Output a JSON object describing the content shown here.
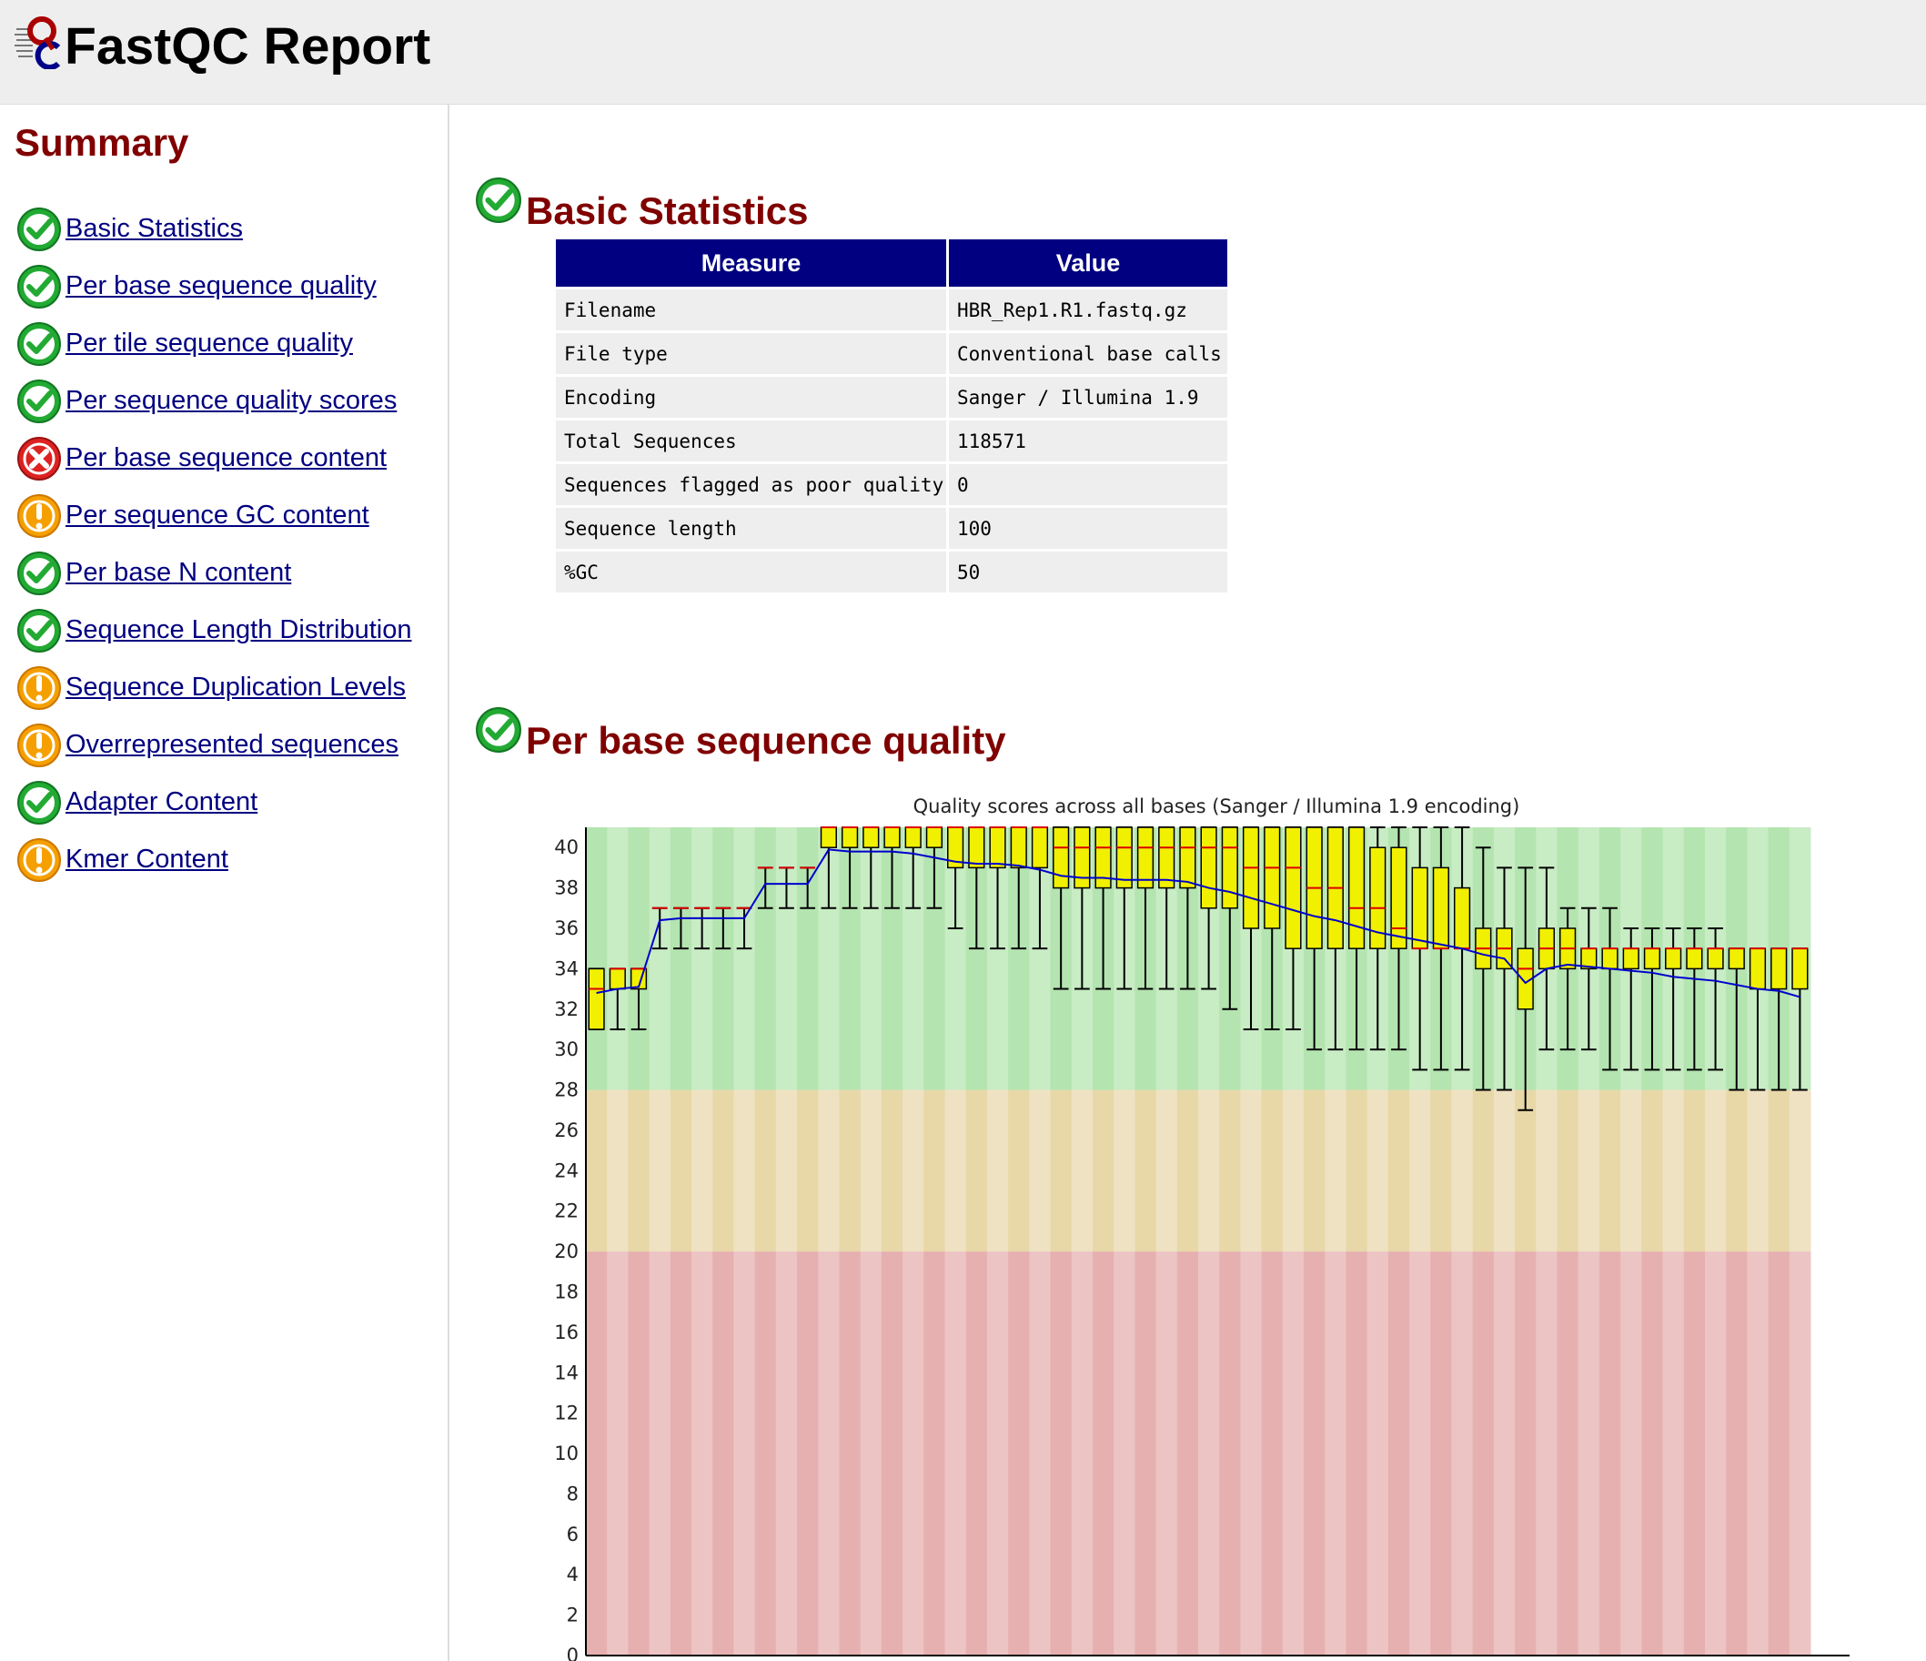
{
  "header": {
    "title": "FastQC Report",
    "logo_icon": "fastqc-logo-icon"
  },
  "summary": {
    "title": "Summary",
    "items": [
      {
        "label": "Basic Statistics",
        "status": "pass"
      },
      {
        "label": "Per base sequence quality",
        "status": "pass"
      },
      {
        "label": "Per tile sequence quality",
        "status": "pass"
      },
      {
        "label": "Per sequence quality scores",
        "status": "pass"
      },
      {
        "label": "Per base sequence content",
        "status": "fail"
      },
      {
        "label": "Per sequence GC content",
        "status": "warn"
      },
      {
        "label": "Per base N content",
        "status": "pass"
      },
      {
        "label": "Sequence Length Distribution",
        "status": "pass"
      },
      {
        "label": "Sequence Duplication Levels",
        "status": "warn"
      },
      {
        "label": "Overrepresented sequences",
        "status": "warn"
      },
      {
        "label": "Adapter Content",
        "status": "pass"
      },
      {
        "label": "Kmer Content",
        "status": "warn"
      }
    ]
  },
  "basic_statistics": {
    "title": "Basic Statistics",
    "status": "pass",
    "headers": [
      "Measure",
      "Value"
    ],
    "rows": [
      [
        "Filename",
        "HBR_Rep1.R1.fastq.gz"
      ],
      [
        "File type",
        "Conventional base calls"
      ],
      [
        "Encoding",
        "Sanger / Illumina 1.9"
      ],
      [
        "Total Sequences",
        "118571"
      ],
      [
        "Sequences flagged as poor quality",
        "0"
      ],
      [
        "Sequence length",
        "100"
      ],
      [
        "%GC",
        "50"
      ]
    ]
  },
  "per_base_quality": {
    "title": "Per base sequence quality",
    "status": "pass"
  },
  "colors": {
    "pass": "#22aa33",
    "fail": "#dd2222",
    "warn": "#f5a000",
    "link": "#000080",
    "heading": "#800000",
    "table_header": "#000080",
    "box_fill": "#f0f000",
    "median": "#dd0000",
    "mean": "#0000cc"
  },
  "chart_data": {
    "type": "box",
    "title": "Quality scores across all bases (Sanger / Illumina 1.9 encoding)",
    "ylim": [
      0,
      41
    ],
    "yticks": [
      0,
      2,
      4,
      6,
      8,
      10,
      12,
      14,
      16,
      18,
      20,
      22,
      24,
      26,
      28,
      30,
      32,
      34,
      36,
      38,
      40
    ],
    "zones": [
      {
        "from": 28,
        "to": 41,
        "quality": "good"
      },
      {
        "from": 20,
        "to": 28,
        "quality": "reasonable"
      },
      {
        "from": 0,
        "to": 20,
        "quality": "poor"
      }
    ],
    "bins": [
      {
        "low": 31,
        "q1": 31,
        "median": 33,
        "q3": 34,
        "high": 34,
        "mean": 32.8
      },
      {
        "low": 31,
        "q1": 33,
        "median": 34,
        "q3": 34,
        "high": 34,
        "mean": 33.0
      },
      {
        "low": 31,
        "q1": 33,
        "median": 34,
        "q3": 34,
        "high": 34,
        "mean": 33.1
      },
      {
        "low": 35,
        "q1": 37,
        "median": 37,
        "q3": 37,
        "high": 37,
        "mean": 36.4
      },
      {
        "low": 35,
        "q1": 37,
        "median": 37,
        "q3": 37,
        "high": 37,
        "mean": 36.5
      },
      {
        "low": 35,
        "q1": 37,
        "median": 37,
        "q3": 37,
        "high": 37,
        "mean": 36.5
      },
      {
        "low": 35,
        "q1": 37,
        "median": 37,
        "q3": 37,
        "high": 37,
        "mean": 36.5
      },
      {
        "low": 35,
        "q1": 37,
        "median": 37,
        "q3": 37,
        "high": 37,
        "mean": 36.5
      },
      {
        "low": 37,
        "q1": 39,
        "median": 39,
        "q3": 39,
        "high": 39,
        "mean": 38.2
      },
      {
        "low": 37,
        "q1": 39,
        "median": 39,
        "q3": 39,
        "high": 39,
        "mean": 38.2
      },
      {
        "low": 37,
        "q1": 39,
        "median": 39,
        "q3": 39,
        "high": 39,
        "mean": 38.2
      },
      {
        "low": 37,
        "q1": 40,
        "median": 41,
        "q3": 41,
        "high": 41,
        "mean": 39.9
      },
      {
        "low": 37,
        "q1": 40,
        "median": 41,
        "q3": 41,
        "high": 41,
        "mean": 39.8
      },
      {
        "low": 37,
        "q1": 40,
        "median": 41,
        "q3": 41,
        "high": 41,
        "mean": 39.8
      },
      {
        "low": 37,
        "q1": 40,
        "median": 41,
        "q3": 41,
        "high": 41,
        "mean": 39.8
      },
      {
        "low": 37,
        "q1": 40,
        "median": 41,
        "q3": 41,
        "high": 41,
        "mean": 39.7
      },
      {
        "low": 37,
        "q1": 40,
        "median": 41,
        "q3": 41,
        "high": 41,
        "mean": 39.5
      },
      {
        "low": 36,
        "q1": 39,
        "median": 41,
        "q3": 41,
        "high": 41,
        "mean": 39.3
      },
      {
        "low": 35,
        "q1": 39,
        "median": 41,
        "q3": 41,
        "high": 41,
        "mean": 39.2
      },
      {
        "low": 35,
        "q1": 39,
        "median": 41,
        "q3": 41,
        "high": 41,
        "mean": 39.2
      },
      {
        "low": 35,
        "q1": 39,
        "median": 41,
        "q3": 41,
        "high": 41,
        "mean": 39.1
      },
      {
        "low": 35,
        "q1": 39,
        "median": 41,
        "q3": 41,
        "high": 41,
        "mean": 38.9
      },
      {
        "low": 33,
        "q1": 38,
        "median": 40,
        "q3": 41,
        "high": 41,
        "mean": 38.6
      },
      {
        "low": 33,
        "q1": 38,
        "median": 40,
        "q3": 41,
        "high": 41,
        "mean": 38.5
      },
      {
        "low": 33,
        "q1": 38,
        "median": 40,
        "q3": 41,
        "high": 41,
        "mean": 38.5
      },
      {
        "low": 33,
        "q1": 38,
        "median": 40,
        "q3": 41,
        "high": 41,
        "mean": 38.4
      },
      {
        "low": 33,
        "q1": 38,
        "median": 40,
        "q3": 41,
        "high": 41,
        "mean": 38.4
      },
      {
        "low": 33,
        "q1": 38,
        "median": 40,
        "q3": 41,
        "high": 41,
        "mean": 38.4
      },
      {
        "low": 33,
        "q1": 38,
        "median": 40,
        "q3": 41,
        "high": 41,
        "mean": 38.3
      },
      {
        "low": 33,
        "q1": 37,
        "median": 40,
        "q3": 41,
        "high": 41,
        "mean": 38.0
      },
      {
        "low": 32,
        "q1": 37,
        "median": 40,
        "q3": 41,
        "high": 41,
        "mean": 37.8
      },
      {
        "low": 31,
        "q1": 36,
        "median": 39,
        "q3": 41,
        "high": 41,
        "mean": 37.5
      },
      {
        "low": 31,
        "q1": 36,
        "median": 39,
        "q3": 41,
        "high": 41,
        "mean": 37.2
      },
      {
        "low": 31,
        "q1": 35,
        "median": 39,
        "q3": 41,
        "high": 41,
        "mean": 36.9
      },
      {
        "low": 30,
        "q1": 35,
        "median": 38,
        "q3": 41,
        "high": 41,
        "mean": 36.6
      },
      {
        "low": 30,
        "q1": 35,
        "median": 38,
        "q3": 41,
        "high": 41,
        "mean": 36.4
      },
      {
        "low": 30,
        "q1": 35,
        "median": 37,
        "q3": 41,
        "high": 41,
        "mean": 36.1
      },
      {
        "low": 30,
        "q1": 35,
        "median": 37,
        "q3": 40,
        "high": 41,
        "mean": 35.8
      },
      {
        "low": 30,
        "q1": 35,
        "median": 36,
        "q3": 40,
        "high": 41,
        "mean": 35.6
      },
      {
        "low": 29,
        "q1": 35,
        "median": 35,
        "q3": 39,
        "high": 41,
        "mean": 35.4
      },
      {
        "low": 29,
        "q1": 35,
        "median": 35,
        "q3": 39,
        "high": 41,
        "mean": 35.2
      },
      {
        "low": 29,
        "q1": 35,
        "median": 35,
        "q3": 38,
        "high": 41,
        "mean": 35.0
      },
      {
        "low": 28,
        "q1": 34,
        "median": 35,
        "q3": 36,
        "high": 40,
        "mean": 34.7
      },
      {
        "low": 28,
        "q1": 34,
        "median": 35,
        "q3": 36,
        "high": 39,
        "mean": 34.5
      },
      {
        "low": 27,
        "q1": 32,
        "median": 34,
        "q3": 35,
        "high": 39,
        "mean": 33.3
      },
      {
        "low": 30,
        "q1": 34,
        "median": 35,
        "q3": 36,
        "high": 39,
        "mean": 34.0
      },
      {
        "low": 30,
        "q1": 34,
        "median": 35,
        "q3": 36,
        "high": 37,
        "mean": 34.2
      },
      {
        "low": 30,
        "q1": 34,
        "median": 35,
        "q3": 35,
        "high": 37,
        "mean": 34.1
      },
      {
        "low": 29,
        "q1": 34,
        "median": 35,
        "q3": 35,
        "high": 37,
        "mean": 34.0
      },
      {
        "low": 29,
        "q1": 34,
        "median": 35,
        "q3": 35,
        "high": 36,
        "mean": 33.9
      },
      {
        "low": 29,
        "q1": 34,
        "median": 35,
        "q3": 35,
        "high": 36,
        "mean": 33.8
      },
      {
        "low": 29,
        "q1": 34,
        "median": 35,
        "q3": 35,
        "high": 36,
        "mean": 33.6
      },
      {
        "low": 29,
        "q1": 34,
        "median": 35,
        "q3": 35,
        "high": 36,
        "mean": 33.5
      },
      {
        "low": 29,
        "q1": 34,
        "median": 35,
        "q3": 35,
        "high": 36,
        "mean": 33.4
      },
      {
        "low": 28,
        "q1": 34,
        "median": 35,
        "q3": 35,
        "high": 35,
        "mean": 33.2
      },
      {
        "low": 28,
        "q1": 33,
        "median": 35,
        "q3": 35,
        "high": 35,
        "mean": 33.0
      },
      {
        "low": 28,
        "q1": 33,
        "median": 35,
        "q3": 35,
        "high": 35,
        "mean": 32.9
      },
      {
        "low": 28,
        "q1": 33,
        "median": 35,
        "q3": 35,
        "high": 35,
        "mean": 32.6
      }
    ]
  }
}
